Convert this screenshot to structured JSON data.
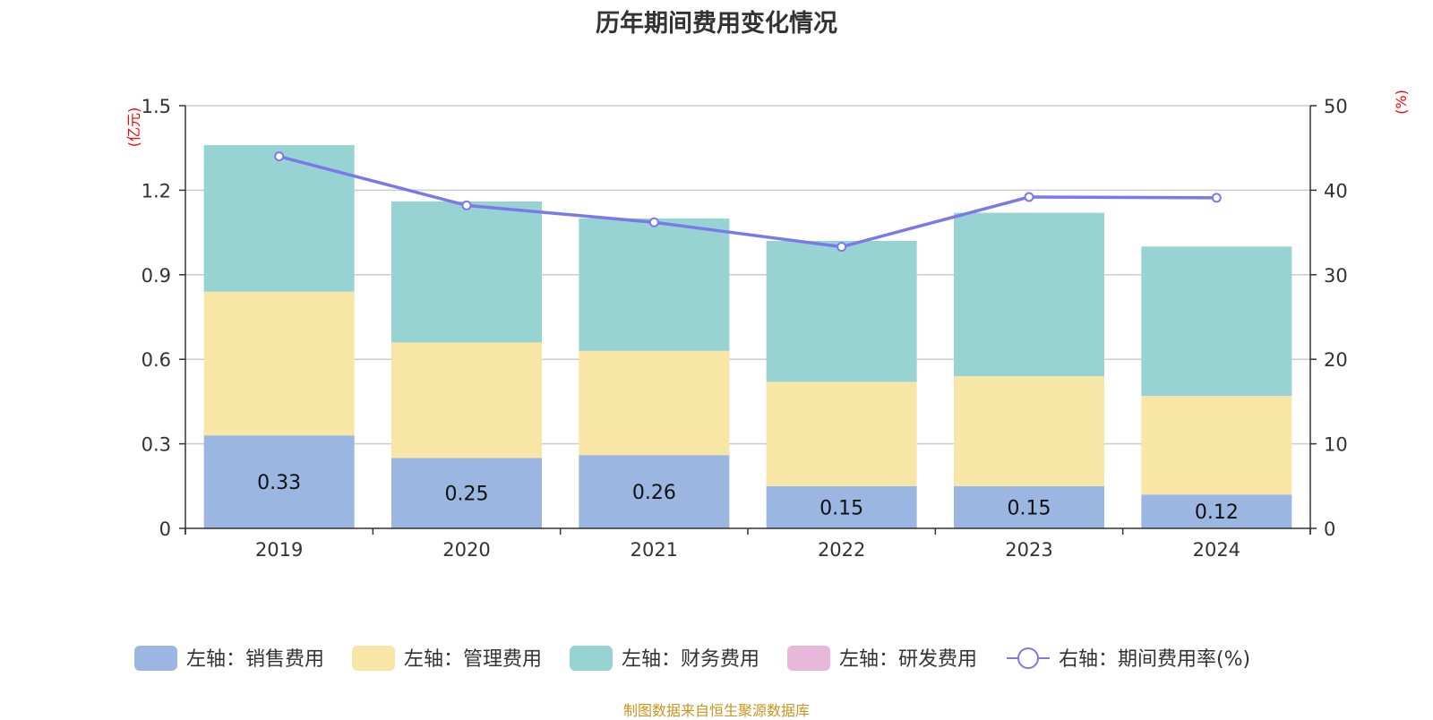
{
  "colors": {
    "sales": "#9bb7e1",
    "admin": "#f7e6a6",
    "finance": "#98d3d4",
    "rnd": "#e7b8da",
    "rate_line": "#7b79e8",
    "unit_text": "#ff0000",
    "source_text": "#c8961e"
  },
  "chart_data": {
    "type": "bar",
    "title": "历年期间费用变化情况",
    "categories": [
      "2019",
      "2020",
      "2021",
      "2022",
      "2023",
      "2024"
    ],
    "y_left": {
      "unit_label": "(亿元)",
      "ylim": [
        0,
        1.5
      ],
      "ticks": [
        "0",
        "0.3",
        "0.6",
        "0.9",
        "1.2",
        "1.5"
      ]
    },
    "y_right": {
      "unit_label": "(%)",
      "ylim": [
        0,
        50
      ],
      "ticks": [
        "0",
        "10",
        "20",
        "30",
        "40",
        "50"
      ]
    },
    "series": [
      {
        "name": "左轴：销售费用",
        "axis": "left",
        "type": "bar",
        "values": [
          0.33,
          0.25,
          0.26,
          0.15,
          0.15,
          0.12
        ],
        "labels": [
          "0.33",
          "0.25",
          "0.26",
          "0.15",
          "0.15",
          "0.12"
        ]
      },
      {
        "name": "左轴：管理费用",
        "axis": "left",
        "type": "bar",
        "values": [
          0.51,
          0.41,
          0.37,
          0.37,
          0.39,
          0.35
        ]
      },
      {
        "name": "左轴：财务费用",
        "axis": "left",
        "type": "bar",
        "values": [
          0.52,
          0.5,
          0.47,
          0.5,
          0.58,
          0.53
        ]
      },
      {
        "name": "左轴：研发费用",
        "axis": "left",
        "type": "bar",
        "values": [
          0,
          0,
          0,
          0,
          0,
          0
        ]
      },
      {
        "name": "右轴：期间费用率(%)",
        "axis": "right",
        "type": "line",
        "values": [
          44.0,
          38.2,
          36.2,
          33.3,
          39.2,
          39.1
        ]
      }
    ],
    "grid": true,
    "legend_position": "bottom"
  },
  "source_note": "制图数据来自恒生聚源数据库"
}
